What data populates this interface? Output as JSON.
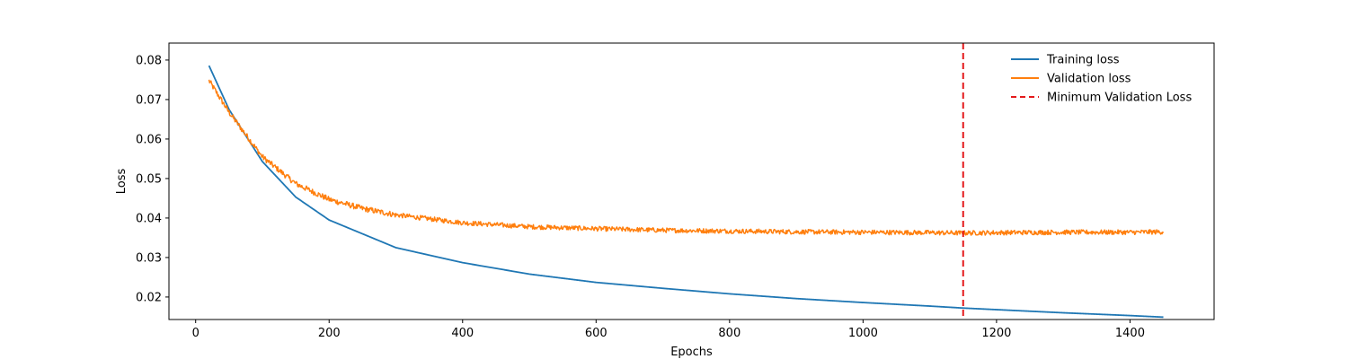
{
  "chart_data": {
    "type": "line",
    "xlabel": "Epochs",
    "ylabel": "Loss",
    "xlim": [
      -40,
      1526
    ],
    "ylim": [
      0.0143,
      0.0843
    ],
    "xticks": [
      0,
      200,
      400,
      600,
      800,
      1000,
      1200,
      1400
    ],
    "xtick_labels": [
      "0",
      "200",
      "400",
      "600",
      "800",
      "1000",
      "1200",
      "1400"
    ],
    "yticks": [
      0.02,
      0.03,
      0.04,
      0.05,
      0.06,
      0.07,
      0.08
    ],
    "ytick_labels": [
      "0.02",
      "0.03",
      "0.04",
      "0.05",
      "0.06",
      "0.07",
      "0.08"
    ],
    "grid": false,
    "legend_position": "top-right",
    "series": [
      {
        "name": "Training loss",
        "color": "#1f77b4",
        "x": [
          20,
          50,
          100,
          150,
          200,
          300,
          400,
          500,
          600,
          700,
          800,
          900,
          1000,
          1100,
          1150,
          1200,
          1300,
          1400,
          1450
        ],
        "y": [
          0.0786,
          0.0675,
          0.0543,
          0.0453,
          0.0395,
          0.0325,
          0.0287,
          0.0258,
          0.0237,
          0.0222,
          0.0208,
          0.0196,
          0.0186,
          0.0177,
          0.0172,
          0.0168,
          0.016,
          0.0153,
          0.0149
        ]
      },
      {
        "name": "Validation loss",
        "color": "#ff7f0e",
        "noise_amplitude": 0.0006,
        "x": [
          20,
          50,
          100,
          150,
          200,
          250,
          300,
          400,
          500,
          600,
          700,
          800,
          900,
          1000,
          1100,
          1150,
          1200,
          1300,
          1400,
          1450
        ],
        "y": [
          0.0748,
          0.0668,
          0.0555,
          0.0487,
          0.0447,
          0.0424,
          0.0408,
          0.0388,
          0.0378,
          0.0373,
          0.0369,
          0.0367,
          0.0365,
          0.0364,
          0.0363,
          0.0362,
          0.0363,
          0.0364,
          0.0364,
          0.0365
        ]
      },
      {
        "name": "Minimum Validation Loss",
        "type": "vline",
        "color": "#e41a1c",
        "x": 1150,
        "style": "dashed"
      }
    ]
  }
}
